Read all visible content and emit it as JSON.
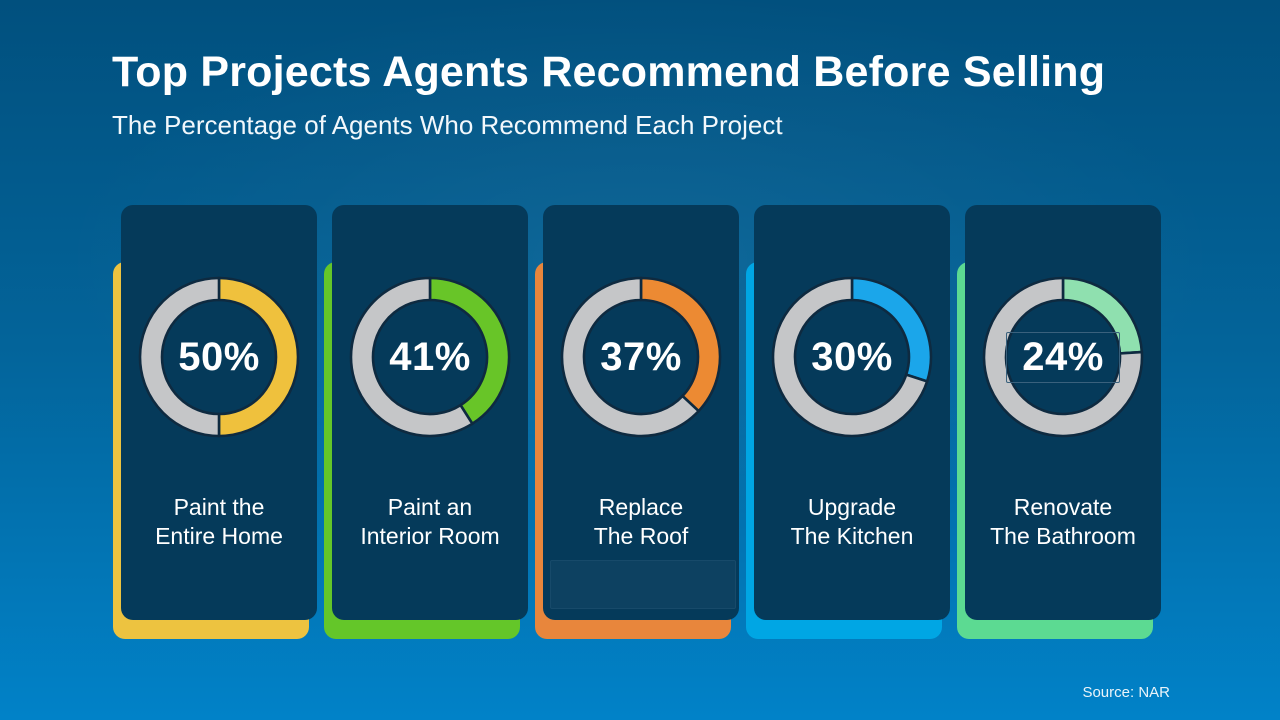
{
  "title": "Top Projects Agents Recommend Before Selling",
  "subtitle": "The Percentage of Agents Who Recommend Each Project",
  "source": "Source: NAR",
  "colors": {
    "background_top": "#01507E",
    "background_bottom": "#0182C8",
    "card_panel": "#053A5A",
    "ring_track": "#C5C6C8",
    "ring_outline": "#0E2A40",
    "text": "#FFFFFF"
  },
  "cards": [
    {
      "pct": "50%",
      "value": 50,
      "line1": "Paint the",
      "line2": "Entire Home",
      "ring": "#EFC13D",
      "accent": "#EDC340"
    },
    {
      "pct": "41%",
      "value": 41,
      "line1": "Paint an",
      "line2": "Interior Room",
      "ring": "#68C528",
      "accent": "#64C629"
    },
    {
      "pct": "37%",
      "value": 37,
      "line1": "Replace",
      "line2": "The Roof",
      "ring": "#EC8A33",
      "accent": "#E8863C"
    },
    {
      "pct": "30%",
      "value": 30,
      "line1": "Upgrade",
      "line2": "The Kitchen",
      "ring": "#1BA6EA",
      "accent": "#00A6E4"
    },
    {
      "pct": "24%",
      "value": 24,
      "line1": "Renovate",
      "line2": "The Bathroom",
      "ring": "#8FE0AF",
      "accent": "#5CDA92"
    }
  ],
  "chart_data": {
    "type": "pie",
    "subtype": "donut-progress-multiples",
    "title": "Top Projects Agents Recommend Before Selling",
    "subtitle": "The Percentage of Agents Who Recommend Each Project",
    "unit": "%",
    "categories": [
      "Paint the Entire Home",
      "Paint an Interior Room",
      "Replace The Roof",
      "Upgrade The Kitchen",
      "Renovate The Bathroom"
    ],
    "values": [
      50,
      41,
      37,
      30,
      24
    ],
    "segment_colors": [
      "#EFC13D",
      "#68C528",
      "#EC8A33",
      "#1BA6EA",
      "#8FE0AF"
    ],
    "remainder_color": "#C5C6C8",
    "start_angle_deg": 0,
    "direction": "clockwise",
    "legend": "none",
    "source": "Source: NAR"
  }
}
